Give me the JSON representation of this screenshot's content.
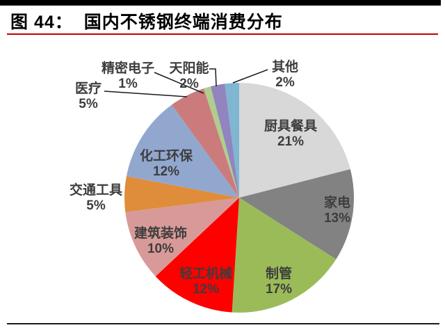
{
  "figure": {
    "label": "图 44：",
    "title": "国内不锈钢终端消费分布"
  },
  "chart_data": {
    "type": "pie",
    "title": "国内不锈钢终端消费分布",
    "start_angle_deg": 0,
    "direction": "clockwise",
    "legend": "none",
    "slices": [
      {
        "name": "厨具餐具",
        "value": 21,
        "pct": "21%",
        "color": "#d8d8d8",
        "label_placement": "inside"
      },
      {
        "name": "家电",
        "value": 13,
        "pct": "13%",
        "color": "#828282",
        "label_placement": "inside"
      },
      {
        "name": "制管",
        "value": 17,
        "pct": "17%",
        "color": "#9bbb59",
        "label_placement": "inside"
      },
      {
        "name": "轻工机械",
        "value": 12,
        "pct": "12%",
        "color": "#fe0000",
        "label_placement": "inside"
      },
      {
        "name": "建筑装饰",
        "value": 10,
        "pct": "10%",
        "color": "#d89a98",
        "label_placement": "inside"
      },
      {
        "name": "交通工具",
        "value": 5,
        "pct": "5%",
        "color": "#df8d3b",
        "label_placement": "outside-left"
      },
      {
        "name": "化工环保",
        "value": 12,
        "pct": "12%",
        "color": "#92a7ce",
        "label_placement": "inside"
      },
      {
        "name": "医疗",
        "value": 5,
        "pct": "5%",
        "color": "#cb7b7b",
        "label_placement": "outside-left"
      },
      {
        "name": "精密电子",
        "value": 1,
        "pct": "1%",
        "color": "#afce8d",
        "label_placement": "outside-top"
      },
      {
        "name": "天阳能",
        "value": 2,
        "pct": "2%",
        "color": "#9184bf",
        "label_placement": "outside-top"
      },
      {
        "name": "其他",
        "value": 2,
        "pct": "2%",
        "color": "#7fb6d2",
        "label_placement": "outside-top"
      }
    ]
  },
  "colors": {
    "top_bar": "#000000",
    "title_text": "#000000",
    "title_rule": "#c00000",
    "bottom_rule": "#1a1a1a",
    "label_text": "#3d3d3d",
    "leader_line": "#1a1a1a"
  }
}
